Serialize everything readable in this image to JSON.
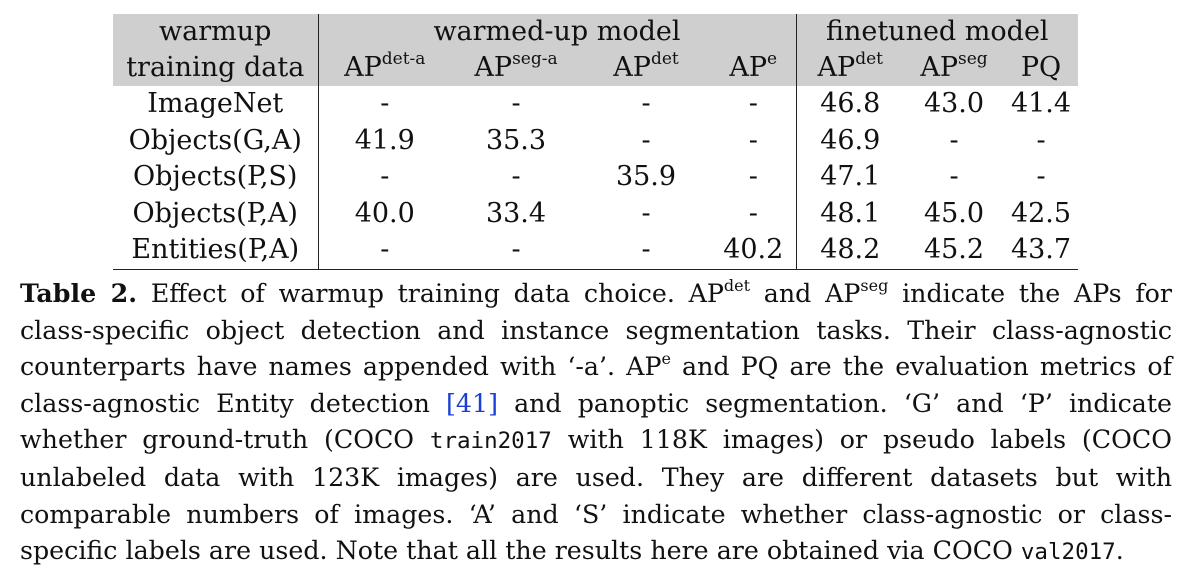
{
  "table": {
    "header_group": {
      "warmup": "warmup",
      "warmed_up": "warmed-up model",
      "finetuned": "finetuned model"
    },
    "header_metrics": {
      "training_data": "training data",
      "ap_base": "AP",
      "det_a": "det-a",
      "seg_a": "seg-a",
      "det": "det",
      "e": "e",
      "seg": "seg",
      "pq": "PQ"
    },
    "rows": [
      {
        "name": "ImageNet",
        "c1": "-",
        "c2": "-",
        "c3": "-",
        "c4": "-",
        "c5": "46.8",
        "c6": "43.0",
        "c7": "41.4"
      },
      {
        "name": "Objects(G,A)",
        "c1": "41.9",
        "c2": "35.3",
        "c3": "-",
        "c4": "-",
        "c5": "46.9",
        "c6": "-",
        "c7": "-"
      },
      {
        "name": "Objects(P,S)",
        "c1": "-",
        "c2": "-",
        "c3": "35.9",
        "c4": "-",
        "c5": "47.1",
        "c6": "-",
        "c7": "-"
      },
      {
        "name": "Objects(P,A)",
        "c1": "40.0",
        "c2": "33.4",
        "c3": "-",
        "c4": "-",
        "c5": "48.1",
        "c6": "45.0",
        "c7": "42.5"
      },
      {
        "name": "Entities(P,A)",
        "c1": "-",
        "c2": "-",
        "c3": "-",
        "c4": "40.2",
        "c5": "48.2",
        "c6": "45.2",
        "c7": "43.7"
      }
    ]
  },
  "caption": {
    "label": "Table 2.",
    "t1": "Effect of warmup training data choice.",
    "ap": "AP",
    "det": "det",
    "and": "and",
    "seg": "seg",
    "t2": "indicate the APs for class-specific object detection and instance segmentation tasks. Their class-agnostic counterparts have names appended with ‘-a’.",
    "e": "e",
    "t3": "and PQ are the evaluation metrics of class-agnostic Entity detection",
    "cite": "[41]",
    "t4": "and panoptic segmentation. ‘G’ and ‘P’ indicate whether ground-truth (COCO",
    "mono1": "train2017",
    "t5": "with 118K images) or pseudo labels (COCO unlabeled data with 123K images) are used. They are different datasets but with comparable numbers of images. ‘A’ and ‘S’ indicate whether class-agnostic or class-specific labels are used. Note that all the results here are obtained via COCO",
    "mono2": "val2017",
    "t6": "."
  }
}
